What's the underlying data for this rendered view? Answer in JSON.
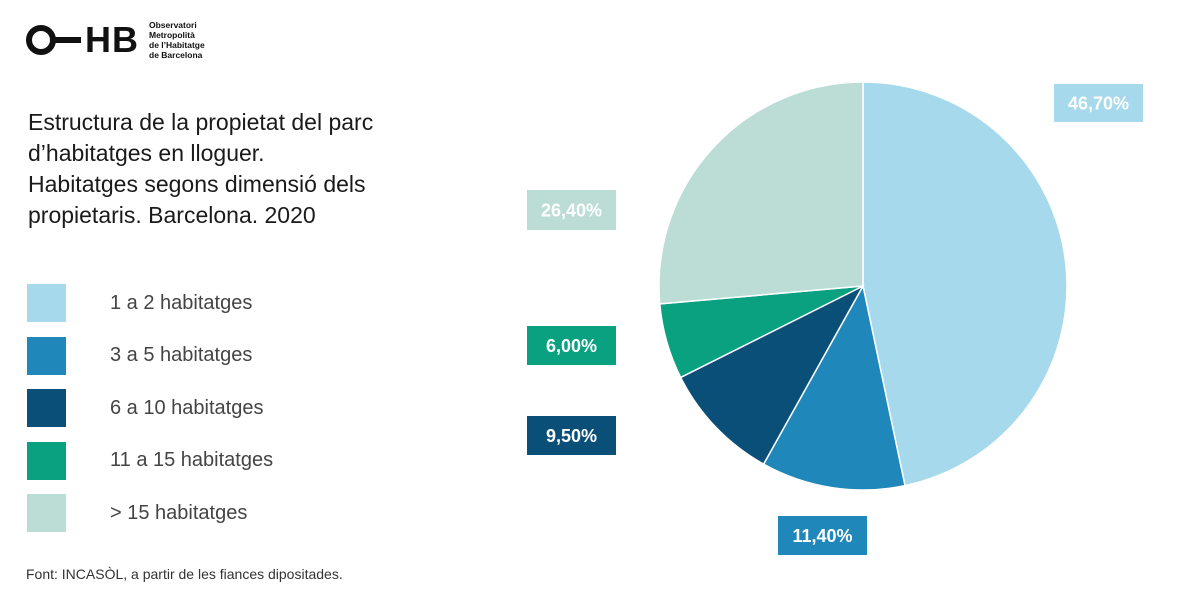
{
  "logo": {
    "letters": "O—HB",
    "lines": [
      "Observatori",
      "Metropolità",
      "de l’Habitatge",
      "de Barcelona"
    ]
  },
  "title_lines": [
    "Estructura de la propietat del parc",
    "d’habitatges en lloguer.",
    "Habitatges segons dimensió dels",
    "propietaris. Barcelona. 2020"
  ],
  "source": "Font: INCASÒL, a partir de les fiances dipositades.",
  "colors": {
    "1 a 2 habitatges": "#a6d9ec",
    "3 a 5 habitatges": "#1f87b9",
    "6 a 10 habitatges": "#0a4f78",
    "11 a 15 habitatges": "#0aa181",
    "> 15 habitatges": "#bbddd6"
  },
  "chart_data": {
    "type": "pie",
    "title": "Estructura de la propietat del parc d’habitatges en lloguer. Habitatges segons dimensió dels propietaris. Barcelona. 2020",
    "categories": [
      "1 a 2 habitatges",
      "3 a 5 habitatges",
      "6 a 10 habitatges",
      "11 a 15 habitatges",
      "> 15 habitatges"
    ],
    "values": [
      46.7,
      11.4,
      9.5,
      6.0,
      26.4
    ],
    "value_labels": [
      "46,70%",
      "11,40%",
      "9,50%",
      "6,00%",
      "26,40%"
    ],
    "unit": "%",
    "start_angle": "12 o'clock",
    "direction": "clockwise",
    "legend_position": "left"
  }
}
